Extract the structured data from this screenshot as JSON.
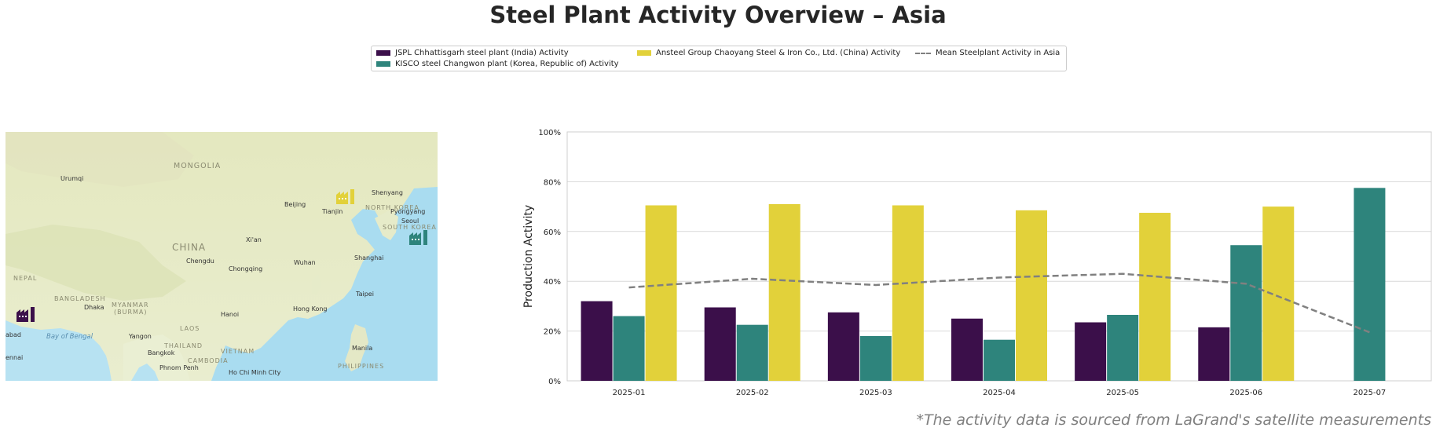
{
  "title": "Steel Plant Activity Overview – Asia",
  "footnote": "*The activity data is sourced from LaGrand's satellite measurements",
  "legend": {
    "items": [
      {
        "label": "JSPL Chhattisgarh steel plant (India) Activity",
        "color": "#3b0f4a",
        "kind": "bar"
      },
      {
        "label": "KISCO steel Changwon plant (Korea, Republic of) Activity",
        "color": "#2e847c",
        "kind": "bar"
      },
      {
        "label": "Ansteel Group Chaoyang Steel & Iron Co., Ltd. (China) Activity",
        "color": "#e2d13a",
        "kind": "bar"
      },
      {
        "label": "Mean Steelplant Activity in Asia",
        "color": "#808080",
        "kind": "dashed-line"
      }
    ]
  },
  "map": {
    "countries": [
      "MONGOLIA",
      "CHINA",
      "NORTH KOREA",
      "SOUTH KOREA",
      "NEPAL",
      "BANGLADESH",
      "MYANMAR",
      "(BURMA)",
      "LAOS",
      "THAILAND",
      "VIETNAM",
      "CAMBODIA",
      "PHILIPPINES"
    ],
    "cities": [
      "Urumqi",
      "Beijing",
      "Tianjin",
      "Shenyang",
      "Pyongyang",
      "Seoul",
      "Xi'an",
      "Chengdu",
      "Chongqing",
      "Wuhan",
      "Shanghai",
      "Taipei",
      "Hong Kong",
      "Dhaka",
      "Hanoi",
      "Yangon",
      "Bangkok",
      "Manila",
      "Phnom Penh",
      "Ho Chi Minh City"
    ],
    "seas": [
      "Bay of Bengal"
    ],
    "edge_text": [
      "abad",
      "ennai"
    ],
    "plant_icons": [
      "factory-icon-india",
      "factory-icon-china",
      "factory-icon-korea"
    ]
  },
  "chart_data": {
    "type": "bar",
    "categories": [
      "2025-01",
      "2025-02",
      "2025-03",
      "2025-04",
      "2025-05",
      "2025-06",
      "2025-07"
    ],
    "series": [
      {
        "name": "JSPL Chhattisgarh steel plant (India) Activity",
        "color": "#3b0f4a",
        "values": [
          32,
          29.5,
          27.5,
          25,
          23.5,
          21.5,
          null
        ]
      },
      {
        "name": "KISCO steel Changwon plant (Korea, Republic of) Activity",
        "color": "#2e847c",
        "values": [
          26,
          22.5,
          18,
          16.5,
          26.5,
          54.5,
          77.5
        ]
      },
      {
        "name": "Ansteel Group Chaoyang Steel & Iron Co., Ltd. (China) Activity",
        "color": "#e2d13a",
        "values": [
          70.5,
          71,
          70.5,
          68.5,
          67.5,
          70,
          null
        ]
      },
      {
        "name": "Mean Steelplant Activity in Asia",
        "color": "#808080",
        "type": "line",
        "style": "dashed",
        "values": [
          37.5,
          41,
          38.5,
          41.5,
          43,
          39,
          19.5
        ]
      }
    ],
    "ylabel": "Production Activity",
    "xlabel": "",
    "ylim": [
      0,
      100
    ],
    "yticks": [
      "0%",
      "20%",
      "40%",
      "60%",
      "80%",
      "100%"
    ],
    "grid": true
  }
}
